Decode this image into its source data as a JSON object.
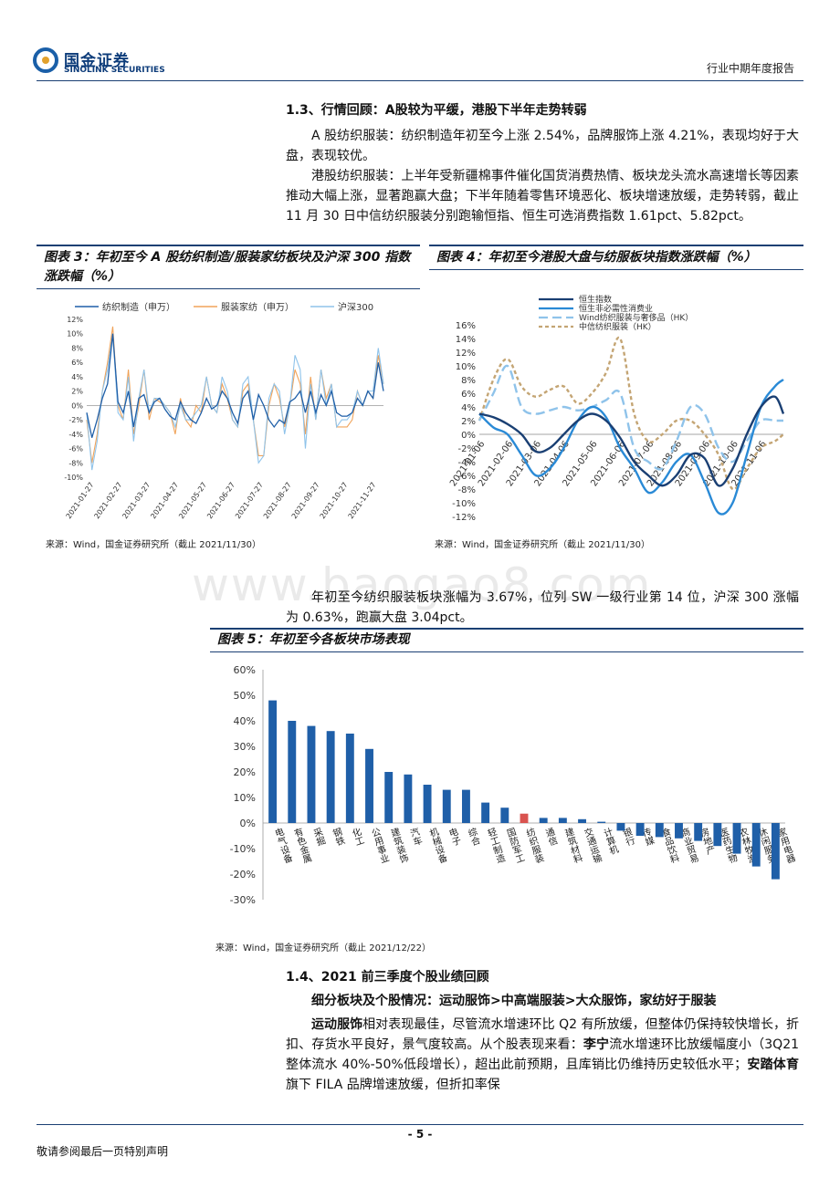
{
  "header": {
    "logo_cn": "国金证券",
    "logo_en": "SINOLINK SECURITIES",
    "report_type": "行业中期年度报告"
  },
  "section13": {
    "title": "1.3、行情回顾：A股较为平缓，港股下半年走势转弱",
    "para1": "A 股纺织服装：纺织制造年初至今上涨 2.54%，品牌服饰上涨 4.21%，表现均好于大盘，表现较优。",
    "para2": "港股纺织服装：上半年受新疆棉事件催化国货消费热情、板块龙头流水高速增长等因素推动大幅上涨，显著跑赢大盘；下半年随着零售环境恶化、板块增速放缓，走势转弱，截止 11 月 30 日中信纺织服装分别跑输恒指、恒生可选消费指数 1.61pct、5.82pct。"
  },
  "fig3": {
    "title": "图表 3：年初至今 A 股纺织制造/服装家纺板块及沪深 300 指数涨跌幅（%）",
    "source": "来源：Wind，国金证券研究所（截止 2021/11/30）"
  },
  "fig4": {
    "title": "图表 4：年初至今港股大盘与纺服板块指数涨跌幅（%）",
    "source": "来源：Wind，国金证券研究所（截止 2021/11/30）"
  },
  "mid_para": "年初至今纺织服装板块涨幅为 3.67%，位列 SW 一级行业第 14 位，沪深 300 涨幅为 0.63%，跑赢大盘 3.04pct。",
  "fig5": {
    "title": "图表 5：年初至今各板块市场表现",
    "source": "来源：Wind，国金证券研究所（截止 2021/12/22）"
  },
  "section14": {
    "title": "1.4、2021 前三季度个股业绩回顾",
    "subtitle": "细分板块及个股情况：运动服饰>中高端服装>大众服饰，家纺好于服装",
    "p_b1": "运动服饰",
    "p_t1": "相对表现最佳，尽管流水增速环比 Q2 有所放缓，但整体仍保持较快增长，折扣、存货水平良好，景气度较高。从个股表现来看：",
    "p_b2": "李宁",
    "p_t2": "流水增速环比放缓幅度小（3Q21 整体流水 40%-50%低段增长），超出此前预期，且库销比仍维持历史较低水平；",
    "p_b3": "安踏体育",
    "p_t3": "旗下 FILA 品牌增速放缓，但折扣率保"
  },
  "footer": {
    "page": "- 5 -",
    "disclaimer": "敬请参阅最后一页特别声明"
  },
  "watermark": "www.baogao8.com",
  "chart_data": [
    {
      "type": "line",
      "id": "fig3",
      "legend": [
        "纺织制造（申万）",
        "服装家纺（申万）",
        "沪深300"
      ],
      "colors": [
        "#1f5fa8",
        "#f0a35a",
        "#8fc3ea"
      ],
      "ylim": [
        -10,
        12
      ],
      "yticks": [
        "12%",
        "10%",
        "8%",
        "6%",
        "4%",
        "2%",
        "0%",
        "-2%",
        "-4%",
        "-6%",
        "-8%",
        "-10%"
      ],
      "xticks": [
        "2021-01-27",
        "2021-02-27",
        "2021-03-27",
        "2021-04-27",
        "2021-05-27",
        "2021-06-27",
        "2021-07-27",
        "2021-08-27",
        "2021-09-27",
        "2021-10-27",
        "2021-11-27"
      ],
      "series": [
        {
          "name": "纺织制造（申万）",
          "values": [
            -1,
            -4.5,
            -2,
            1,
            3,
            10,
            0.5,
            -1,
            2,
            -3,
            1,
            1.5,
            -1,
            0.5,
            1,
            -0.5,
            -1.5,
            -2,
            0.5,
            -1,
            -2,
            -2.5,
            -1,
            1,
            -0.5,
            0,
            2,
            1,
            -1,
            -2.5,
            1,
            2,
            -2,
            1.5,
            0,
            -2,
            -3,
            -2,
            -2.5,
            0.5,
            1,
            2,
            -1,
            2,
            -1,
            1.5,
            0,
            2,
            -1,
            -1.5,
            -1.5,
            -1,
            1,
            0,
            2,
            1,
            6,
            2
          ]
        },
        {
          "name": "服装家纺（申万）",
          "values": [
            -2,
            -8,
            -4,
            2,
            6,
            11,
            0,
            -2,
            5,
            -4,
            0,
            5,
            -2,
            1,
            0.5,
            0,
            -1,
            -4,
            1,
            -2,
            -3,
            0,
            -1,
            4,
            0,
            -1,
            3,
            1,
            -2,
            -3,
            2,
            3,
            -2,
            -7,
            -7,
            0,
            3,
            1,
            -3,
            0,
            5,
            3,
            -4,
            4,
            -2,
            5,
            1,
            3,
            -3,
            -3,
            -3,
            -2,
            2,
            0,
            2,
            1,
            7,
            3
          ]
        },
        {
          "name": "沪深300",
          "values": [
            -1,
            -9,
            -5,
            2,
            5,
            10,
            -1,
            -2,
            4,
            -5,
            1,
            5,
            -1,
            1,
            1,
            0,
            -1,
            -3,
            0,
            -2,
            -2,
            -1,
            0,
            4,
            0,
            -1,
            4,
            2,
            -2,
            -3,
            3,
            4,
            -2,
            -8,
            -7,
            1,
            3,
            2,
            -4,
            0,
            7,
            5,
            -6,
            3,
            -2,
            5,
            0,
            3,
            -3,
            -2,
            -2,
            -1,
            2,
            0,
            2,
            2,
            8,
            3
          ]
        }
      ]
    },
    {
      "type": "line",
      "id": "fig4",
      "legend": [
        "恒生指数",
        "恒生非必需性消费业",
        "Wind纺织服装与奢侈品（HK）",
        "中信纺织服装（HK）"
      ],
      "ylim": [
        -12,
        16
      ],
      "yticks": [
        "16%",
        "14%",
        "12%",
        "10%",
        "8%",
        "6%",
        "4%",
        "2%",
        "0%",
        "-2%",
        "-4%",
        "-6%",
        "-8%",
        "-10%",
        "-12%"
      ],
      "xticks": [
        "2021-01-06",
        "2021-02-06",
        "2021-03-06",
        "2021-04-06",
        "2021-05-06",
        "2021-06-06",
        "2021-07-06",
        "2021-08-06",
        "2021-09-06",
        "2021-10-06",
        "2021-11-06"
      ],
      "x": [
        0,
        0.5,
        1,
        1.5,
        2,
        2.5,
        3,
        3.5,
        4,
        4.5,
        5,
        5.5,
        6,
        6.5,
        7,
        7.5,
        8,
        8.5,
        9,
        9.5,
        10,
        10.5,
        10.8
      ],
      "series": [
        {
          "name": "恒生指数",
          "values": [
            3,
            2.5,
            1.5,
            0,
            -2.5,
            -2,
            0,
            2,
            3,
            2,
            -0.5,
            -4,
            -6,
            -7.5,
            -6,
            -3,
            -3.5,
            -7.5,
            -5,
            0,
            4,
            5.5,
            3
          ]
        },
        {
          "name": "恒生非必需性消费业",
          "values": [
            3,
            1,
            0,
            -3,
            -6,
            -5,
            -2,
            2,
            4,
            2.5,
            -2,
            -5,
            -8.5,
            -7,
            -4,
            -3,
            -7,
            -11.5,
            -10,
            -3,
            4,
            7,
            8
          ]
        },
        {
          "name": "Wind纺织服装与奢侈品（HK）",
          "values": [
            2,
            6,
            10,
            4,
            3,
            3.5,
            4,
            3.5,
            4,
            5,
            6,
            -2,
            -4,
            -5,
            -1,
            4,
            3,
            -2,
            -4,
            -1,
            2,
            2,
            2
          ]
        },
        {
          "name": "中信纺织服装（HK）",
          "values": [
            2,
            8,
            11,
            7,
            5.5,
            6.5,
            7,
            4.5,
            6,
            9,
            14,
            3,
            -1,
            0,
            2,
            2,
            0,
            -3,
            -8,
            -5,
            -2,
            -1,
            0
          ]
        }
      ]
    },
    {
      "type": "bar",
      "id": "fig5",
      "ylim": [
        -30,
        60
      ],
      "yticks": [
        "60%",
        "50%",
        "40%",
        "30%",
        "20%",
        "10%",
        "0%",
        "-10%",
        "-20%",
        "-30%"
      ],
      "categories": [
        "电气设备",
        "有色金属",
        "采掘",
        "钢铁",
        "化工",
        "公用事业",
        "建筑装饰",
        "汽车",
        "机械设备",
        "电子",
        "综合",
        "轻工制造",
        "国防军工",
        "纺织服装",
        "通信",
        "建筑材料",
        "交通运输",
        "计算机",
        "银行",
        "传媒",
        "食品饮料",
        "商业贸易",
        "房地产",
        "医药生物",
        "农林牧渔",
        "休闲服务",
        "家用电器"
      ],
      "values": [
        48,
        40,
        38,
        36,
        35,
        29,
        20,
        19,
        15,
        13,
        13,
        8,
        6,
        3.67,
        2,
        2,
        1.5,
        0.5,
        -3,
        -5,
        -5.5,
        -6,
        -7,
        -9,
        -12,
        -17,
        -22
      ],
      "highlight_index": 13,
      "bar_color": "#1f5fa8",
      "highlight_color": "#d9534f"
    }
  ]
}
